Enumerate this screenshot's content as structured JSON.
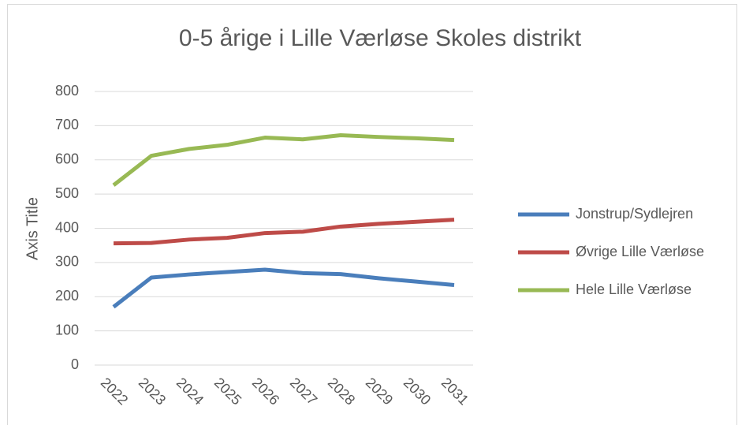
{
  "chart_data": {
    "type": "line",
    "title": "0-5 årige i Lille Værløse Skoles distrikt",
    "y_label": "Axis Title",
    "categories": [
      "2022",
      "2023",
      "2024",
      "2025",
      "2026",
      "2027",
      "2028",
      "2029",
      "2030",
      "2031"
    ],
    "series": [
      {
        "name": "Jonstrup/Sydlejren",
        "color": "#4a7ebb",
        "values": [
          170,
          256,
          265,
          272,
          279,
          269,
          266,
          254,
          244,
          234
        ]
      },
      {
        "name": "Øvrige Lille Værløse",
        "color": "#be4b48",
        "values": [
          356,
          357,
          367,
          372,
          386,
          390,
          405,
          413,
          419,
          425
        ]
      },
      {
        "name": "Hele Lille Værløse",
        "color": "#98b954",
        "values": [
          526,
          612,
          632,
          644,
          665,
          660,
          672,
          667,
          663,
          658
        ]
      }
    ],
    "ylim": [
      0,
      800
    ],
    "yticks": [
      0,
      100,
      200,
      300,
      400,
      500,
      600,
      700,
      800
    ],
    "grid": true,
    "legend": "right"
  }
}
